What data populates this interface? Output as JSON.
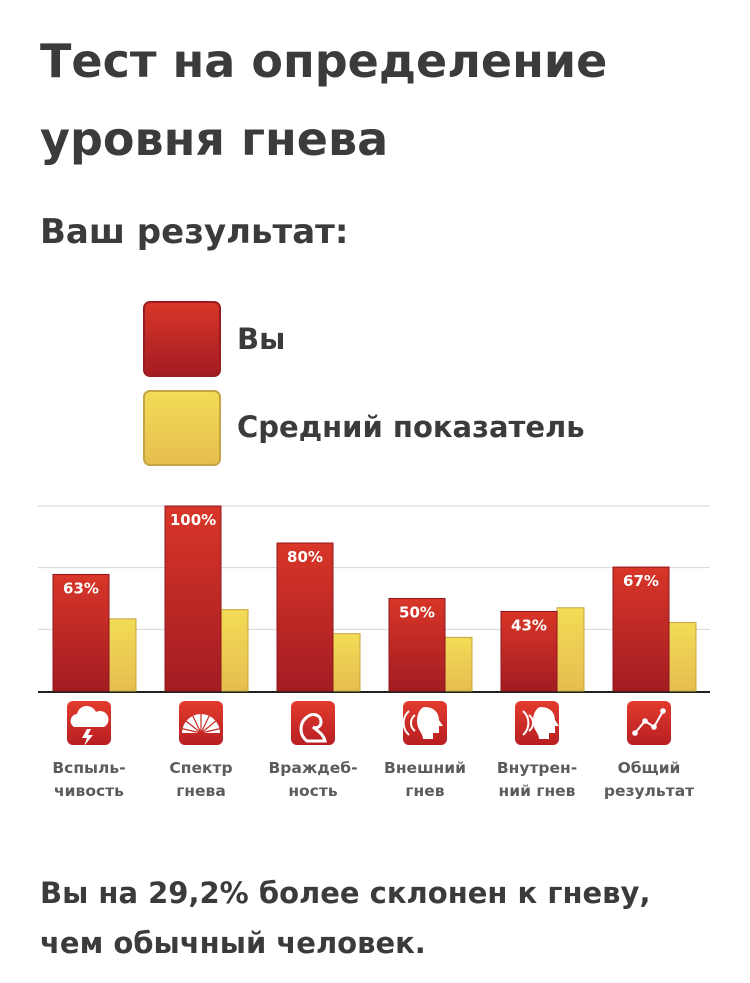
{
  "page": {
    "title": "Тест на определение уровня гнева",
    "subtitle": "Ваш результат:",
    "conclusion": "Вы на 29,2% более склонен к гневу, чем обычный человек."
  },
  "legend": {
    "you": "Вы",
    "average": "Средний показатель"
  },
  "colors": {
    "you_top": "#d83628",
    "you_bottom": "#a31c22",
    "avg_top": "#f2dc56",
    "avg_bottom": "#e6bd4f",
    "icon_bg": "#c92a25"
  },
  "chart_data": {
    "type": "bar",
    "categories": [
      [
        "Вспыль-",
        "чивость"
      ],
      [
        "Спектр",
        "гнева"
      ],
      [
        "Враждеб-",
        "ность"
      ],
      [
        "Внешний",
        "гнев"
      ],
      [
        "Внутрен-",
        "ний гнев"
      ],
      [
        "Общий",
        "результат"
      ]
    ],
    "category_icons": [
      "storm-cloud-icon",
      "gauge-icon",
      "cobra-icon",
      "shouting-head-icon",
      "inner-voice-head-icon",
      "trend-graph-icon"
    ],
    "series": [
      {
        "name": "Вы",
        "values": [
          63,
          100,
          80,
          50,
          43,
          67
        ],
        "labels": [
          "63%",
          "100%",
          "80%",
          "50%",
          "43%",
          "67%"
        ]
      },
      {
        "name": "Средний показатель",
        "values": [
          39,
          44,
          31,
          29,
          45,
          37
        ]
      }
    ],
    "ylim": [
      0,
      100
    ],
    "grid": true,
    "legend_position": "top-left"
  }
}
